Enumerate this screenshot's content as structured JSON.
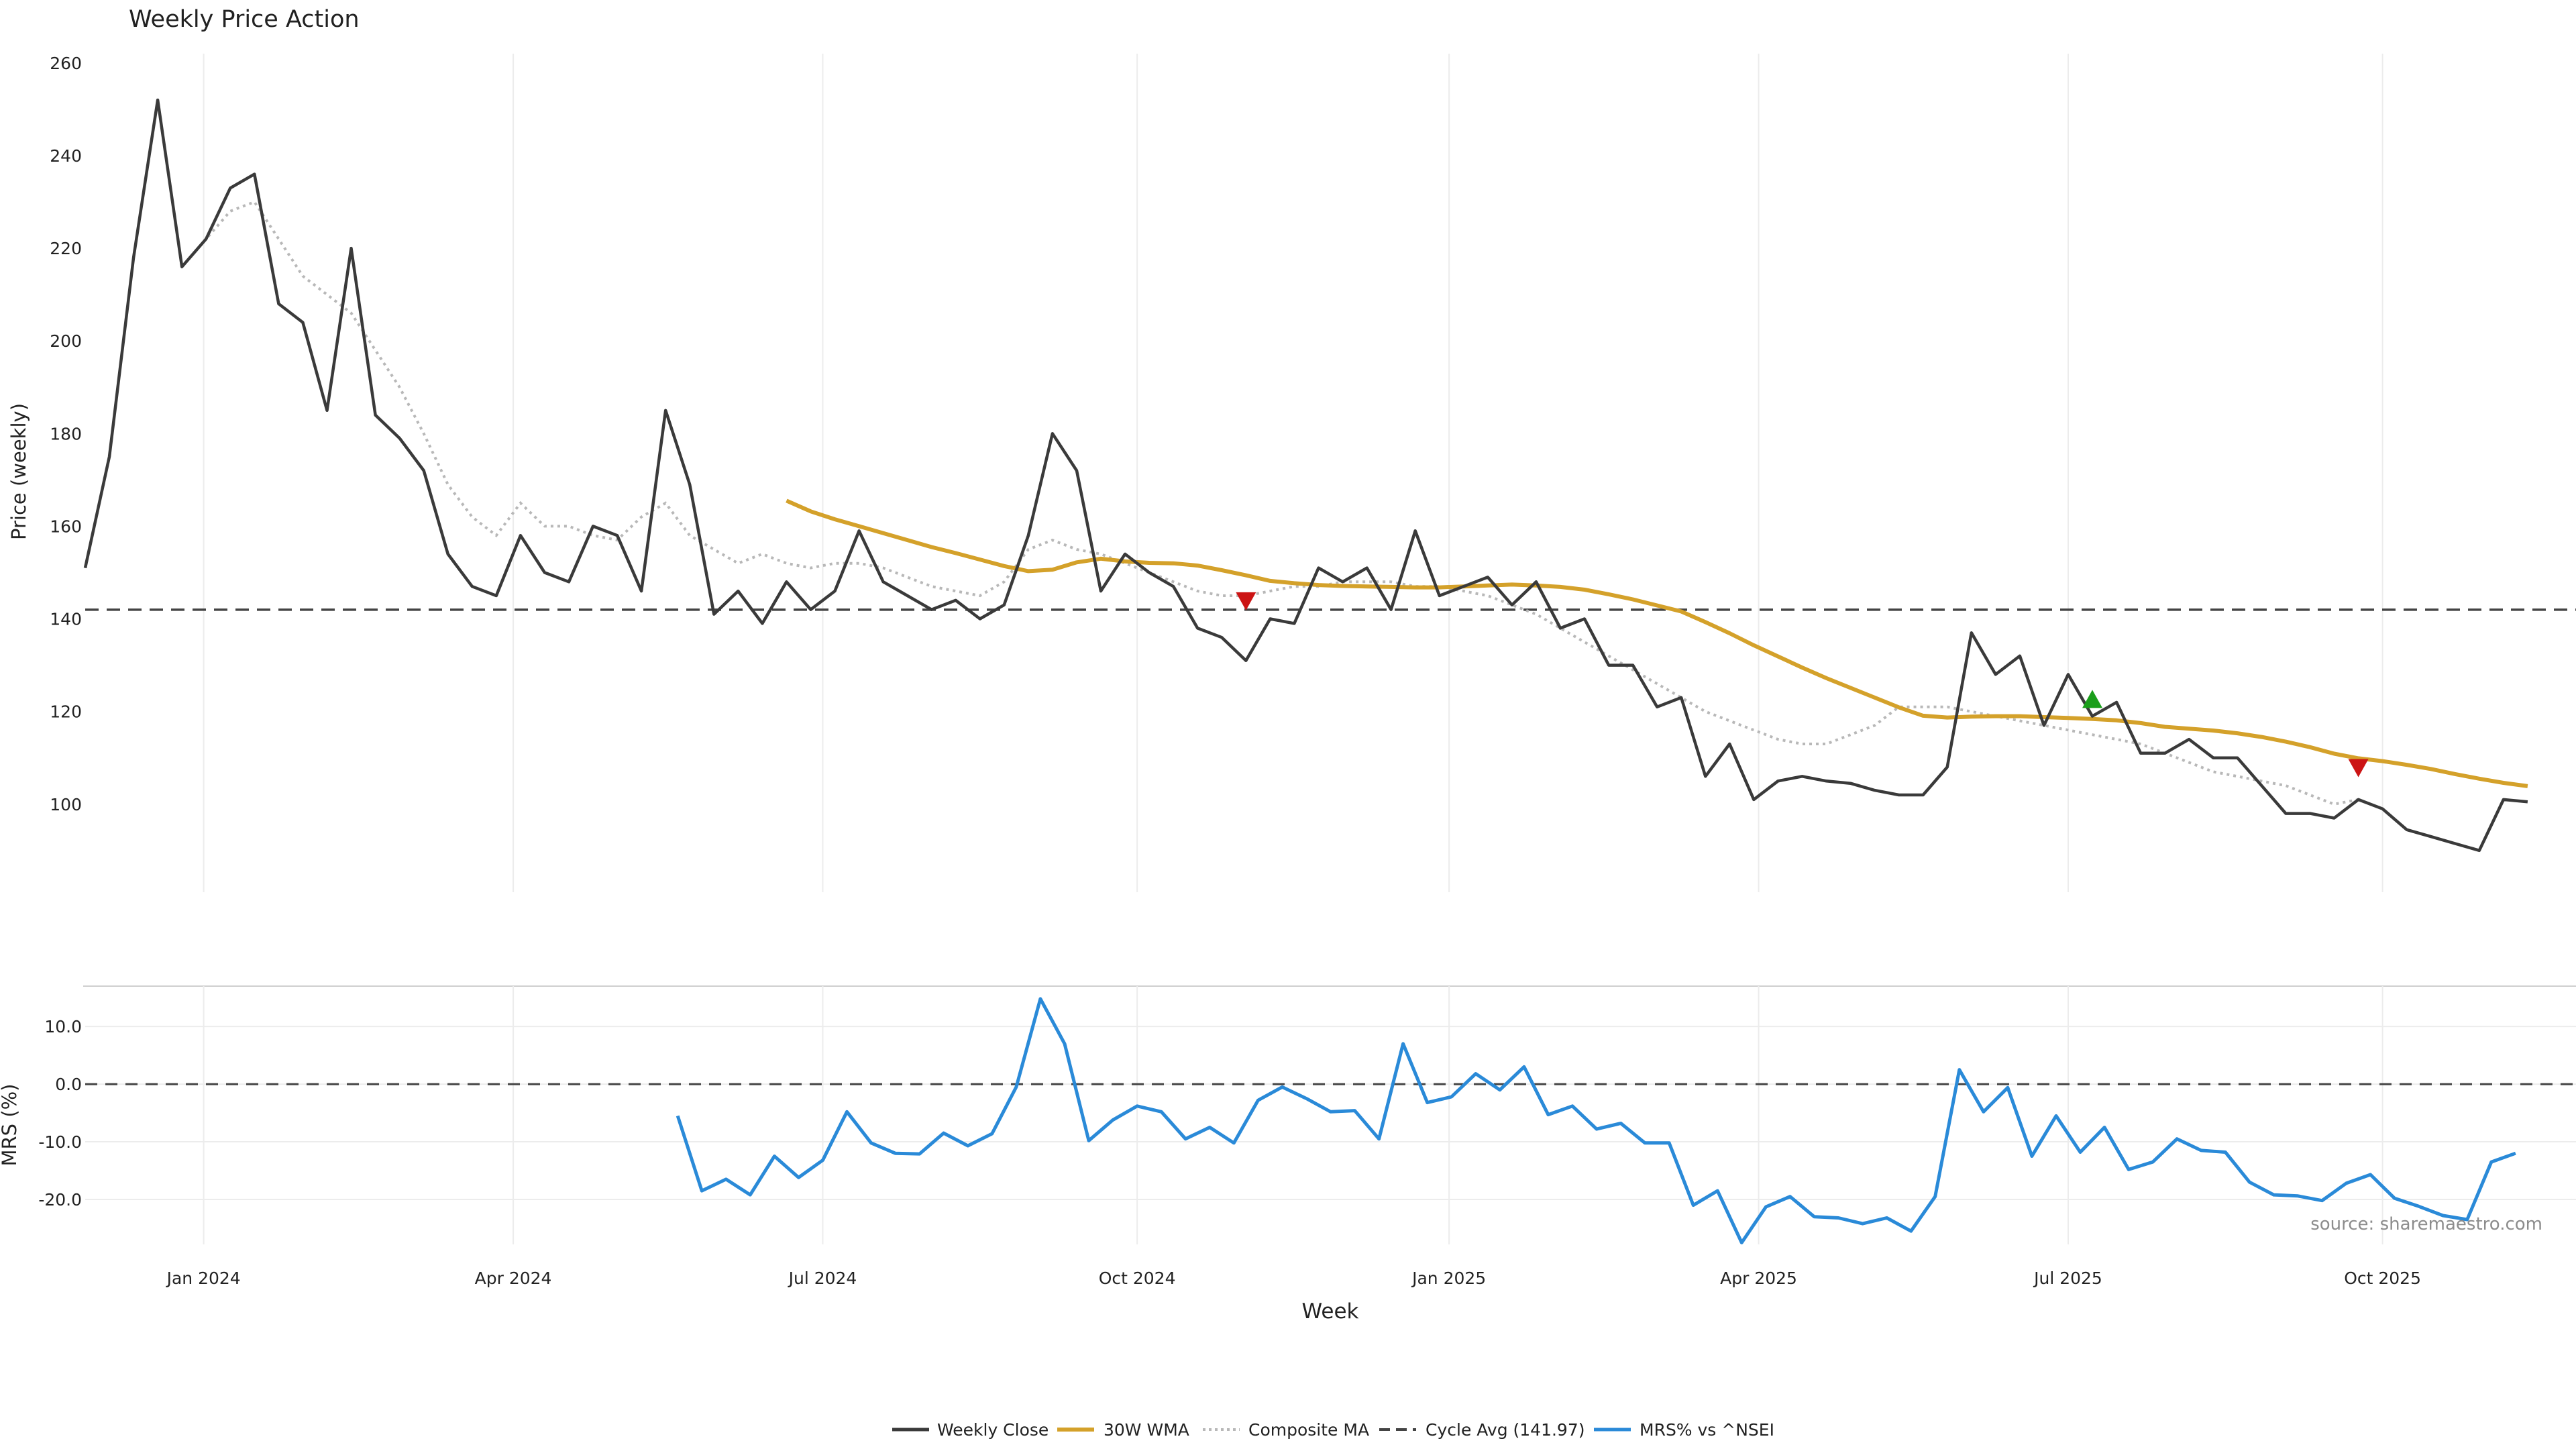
{
  "colors": {
    "close": "#3a3a3a",
    "wma": "#d4a12a",
    "composite": "#b8b8b8",
    "cycle": "#444444",
    "mrs": "#2a8ad8",
    "grid": "#ececec",
    "axis_text": "#222222",
    "source": "#8c8c8c",
    "signal_buy": "#1a9e1a",
    "signal_sell": "#cc1414"
  },
  "source_text": "source: sharemaestro.com",
  "chart_data": [
    {
      "type": "line",
      "title": "Weekly Price Action",
      "ylabel": "Price (weekly)",
      "ylim": [
        81,
        262
      ],
      "yticks": [
        100,
        120,
        140,
        160,
        180,
        200,
        220,
        240,
        260
      ],
      "xlim": [
        0,
        103
      ],
      "series": [
        {
          "name": "Weekly Close",
          "values": [
            151,
            175,
            218,
            252,
            216,
            222,
            233,
            236,
            208,
            204,
            185,
            220,
            184,
            179,
            172,
            154,
            147,
            145,
            158,
            150,
            148,
            160,
            158,
            146,
            185,
            169,
            141,
            146,
            139,
            148,
            142,
            146,
            159,
            148,
            145,
            142,
            144,
            140,
            143,
            158,
            180,
            172,
            146,
            154,
            150,
            147,
            138,
            136,
            131,
            140,
            139,
            151,
            148,
            151,
            142,
            159,
            145,
            147,
            149,
            143,
            148,
            138,
            140,
            130,
            130,
            121,
            123,
            106,
            113,
            101,
            105,
            106,
            105,
            104.5,
            103,
            102,
            102,
            108,
            137,
            128,
            132,
            117,
            128,
            119,
            122,
            111,
            111,
            114,
            110,
            110,
            104,
            98,
            98,
            97,
            101,
            99,
            94.5,
            93,
            91.5,
            90,
            101,
            100.5
          ]
        },
        {
          "name": "30W WMA",
          "start_index": 29,
          "values": [
            165.5,
            163.2,
            161.5,
            160,
            158.5,
            157,
            155.5,
            154.2,
            152.8,
            151.4,
            150.3,
            150.6,
            152.2,
            153.0,
            152.4,
            152.1,
            152.0,
            151.5,
            150.5,
            149.4,
            148.2,
            147.7,
            147.3,
            147.1,
            147.0,
            146.9,
            146.8,
            146.8,
            147.0,
            147.2,
            147.4,
            147.2,
            146.9,
            146.3,
            145.3,
            144.2,
            142.9,
            141.6,
            139.3,
            136.9,
            134.3,
            131.9,
            129.5,
            127.2,
            125.1,
            123.0,
            120.9,
            119.1,
            118.7,
            118.9,
            119.0,
            119.0,
            118.8,
            118.6,
            118.4,
            118.1,
            117.5,
            116.7,
            116.3,
            115.9,
            115.3,
            114.5,
            113.5,
            112.3,
            110.9,
            109.9,
            109.3,
            108.5,
            107.6,
            106.5,
            105.5,
            104.6,
            103.9
          ]
        },
        {
          "name": "Composite MA",
          "start_index": 4,
          "values": [
            216,
            222,
            228,
            230,
            222,
            214,
            210,
            206,
            198,
            190,
            180,
            169,
            162,
            158,
            165,
            160,
            160,
            158,
            157,
            162,
            165,
            158,
            155,
            152,
            154,
            152,
            151,
            152,
            152,
            151,
            149,
            147,
            146,
            145,
            148,
            155,
            157,
            155,
            154,
            152,
            150,
            148,
            146,
            145,
            145,
            146,
            147,
            147,
            148,
            148,
            148,
            147,
            147,
            146,
            145,
            143,
            141,
            138,
            135,
            132,
            129,
            126,
            123,
            120,
            118,
            116,
            114,
            113,
            113,
            115,
            117,
            121,
            121,
            121,
            120,
            119,
            118,
            117,
            116,
            115,
            114,
            113,
            111,
            109,
            107,
            106,
            105,
            104,
            102,
            100,
            101
          ]
        },
        {
          "name": "Cycle Avg (141.97)",
          "constant": 141.97
        }
      ],
      "annotations": [
        {
          "type": "sell-signal",
          "week_index": 48,
          "value": 144
        },
        {
          "type": "buy-signal",
          "week_index": 83,
          "value": 122.5
        },
        {
          "type": "sell-signal",
          "week_index": 94,
          "value": 108
        }
      ]
    },
    {
      "type": "line",
      "title": "",
      "ylabel": "MRS (%)",
      "xlabel": "Week",
      "ylim": [
        -27.8,
        17
      ],
      "yticks": [
        10.0,
        0.0,
        -10.0,
        -20.0
      ],
      "ytick_labels": [
        "10.0",
        "0.0",
        "-10.0",
        "-20.0"
      ],
      "xlim": [
        0,
        103
      ],
      "x_tick_labels": [
        "Jan 2024",
        "Apr 2024",
        "Jul 2024",
        "Oct 2024",
        "Jan 2025",
        "Apr 2025",
        "Jul 2025",
        "Oct 2025"
      ],
      "x_tick_positions": [
        4.9,
        17.7,
        30.5,
        43.5,
        56.4,
        69.2,
        82.0,
        95.0
      ],
      "reference_line": 0,
      "series": [
        {
          "name": "MRS% vs ^NSEI",
          "start_index": 24.5,
          "values": [
            -5.5,
            -18.5,
            -16.5,
            -19.2,
            -12.5,
            -16.2,
            -13.2,
            -4.8,
            -10.2,
            -12,
            -12.1,
            -8.5,
            -10.7,
            -8.6,
            -0.5,
            14.8,
            7,
            -9.8,
            -6.2,
            -3.8,
            -4.8,
            -9.5,
            -7.5,
            -10.2,
            -2.8,
            -0.5,
            -2.5,
            -4.8,
            -4.6,
            -9.5,
            7,
            -3.2,
            -2.2,
            1.8,
            -1,
            3,
            -5.3,
            -3.8,
            -7.8,
            -6.8,
            -10.2,
            -10.2,
            -21,
            -18.5,
            -27.5,
            -21.3,
            -19.5,
            -23,
            -23.2,
            -24.2,
            -23.2,
            -25.5,
            -19.5,
            2.5,
            -4.8,
            -0.6,
            -12.5,
            -5.5,
            -11.8,
            -7.5,
            -14.8,
            -13.5,
            -9.5,
            -11.5,
            -11.8,
            -17,
            -19.2,
            -19.4,
            -20.2,
            -17.2,
            -15.7,
            -19.8,
            -21.2,
            -22.8,
            -23.5,
            -13.5,
            -12
          ]
        }
      ]
    }
  ]
}
